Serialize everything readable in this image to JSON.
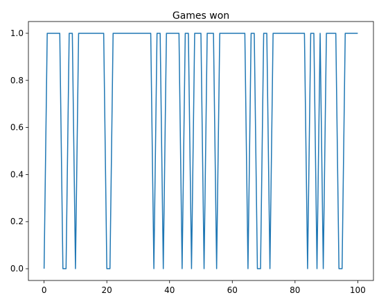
{
  "chart_data": {
    "type": "line",
    "title": "Games won",
    "xlabel": "",
    "ylabel": "",
    "xlim": [
      -5,
      105
    ],
    "ylim": [
      -0.05,
      1.05
    ],
    "x_ticks": [
      0,
      20,
      40,
      60,
      80,
      100
    ],
    "x_tick_labels": [
      "0",
      "20",
      "40",
      "60",
      "80",
      "100"
    ],
    "y_ticks": [
      0.0,
      0.2,
      0.4,
      0.6,
      0.8,
      1.0
    ],
    "y_tick_labels": [
      "0.0",
      "0.2",
      "0.4",
      "0.6",
      "0.8",
      "1.0"
    ],
    "grid": false,
    "series": [
      {
        "color": "#1f77b4",
        "x": [
          0,
          1,
          2,
          3,
          4,
          5,
          6,
          7,
          8,
          9,
          10,
          11,
          12,
          13,
          14,
          15,
          16,
          17,
          18,
          19,
          20,
          21,
          22,
          23,
          24,
          25,
          26,
          27,
          28,
          29,
          30,
          31,
          32,
          33,
          34,
          35,
          36,
          37,
          38,
          39,
          40,
          41,
          42,
          43,
          44,
          45,
          46,
          47,
          48,
          49,
          50,
          51,
          52,
          53,
          54,
          55,
          56,
          57,
          58,
          59,
          60,
          61,
          62,
          63,
          64,
          65,
          66,
          67,
          68,
          69,
          70,
          71,
          72,
          73,
          74,
          75,
          76,
          77,
          78,
          79,
          80,
          81,
          82,
          83,
          84,
          85,
          86,
          87,
          88,
          89,
          90,
          91,
          92,
          93,
          94,
          95,
          96,
          97,
          98,
          99,
          100
        ],
        "values": [
          0,
          1,
          1,
          1,
          1,
          1,
          0,
          0,
          1,
          1,
          0,
          1,
          1,
          1,
          1,
          1,
          1,
          1,
          1,
          1,
          0,
          0,
          1,
          1,
          1,
          1,
          1,
          1,
          1,
          1,
          1,
          1,
          1,
          1,
          1,
          0,
          1,
          1,
          0,
          1,
          1,
          1,
          1,
          1,
          0,
          1,
          1,
          0,
          1,
          1,
          1,
          0,
          1,
          1,
          1,
          0,
          1,
          1,
          1,
          1,
          1,
          1,
          1,
          1,
          1,
          0,
          1,
          1,
          0,
          0,
          1,
          1,
          0,
          1,
          1,
          1,
          1,
          1,
          1,
          1,
          1,
          1,
          1,
          1,
          0,
          1,
          1,
          0,
          1,
          0,
          1,
          1,
          1,
          1,
          0,
          0,
          1,
          1,
          1,
          1,
          1
        ]
      }
    ]
  }
}
